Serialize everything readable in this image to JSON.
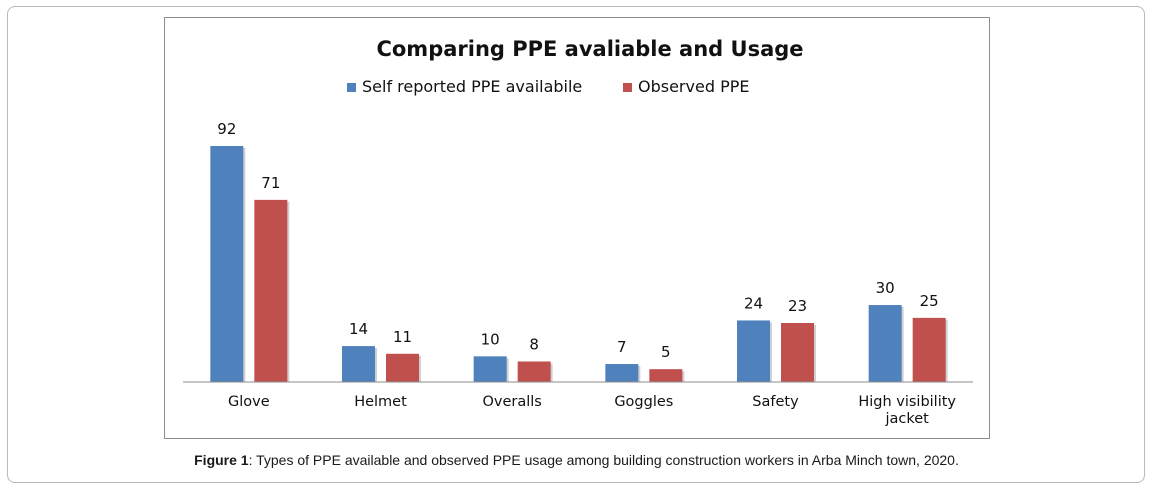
{
  "caption": {
    "label": "Figure 1",
    "text": ": Types of PPE available and observed PPE usage among building construction workers in Arba Minch town, 2020."
  },
  "chart_data": {
    "type": "bar",
    "title": "Comparing PPE avaliable and Usage",
    "xlabel": "",
    "ylabel": "",
    "categories": [
      "Glove",
      "Helmet",
      "Overalls",
      "Goggles",
      "Safety",
      "High visibility jacket"
    ],
    "category_lines": [
      [
        "Glove"
      ],
      [
        "Helmet"
      ],
      [
        "Overalls"
      ],
      [
        "Goggles"
      ],
      [
        "Safety"
      ],
      [
        "High visibility",
        "jacket"
      ]
    ],
    "series": [
      {
        "name": "Self reported PPE availabile",
        "color": "#4f81bd",
        "values": [
          92,
          14,
          10,
          7,
          24,
          30
        ]
      },
      {
        "name": "Observed PPE",
        "color": "#c0504d",
        "values": [
          71,
          11,
          8,
          5,
          23,
          25
        ]
      }
    ],
    "ylim": [
      0,
      92
    ],
    "grid": false,
    "legend_position": "top",
    "data_labels": true
  }
}
